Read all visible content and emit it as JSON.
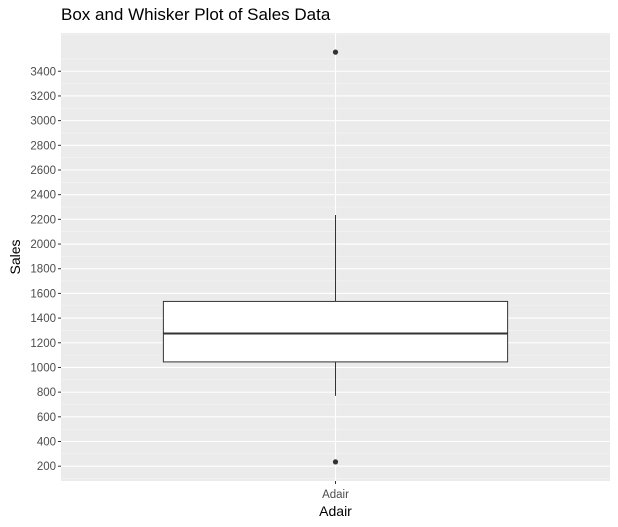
{
  "chart_data": {
    "type": "boxplot",
    "title": "Box and Whisker Plot of Sales Data",
    "xlabel": "Adair",
    "ylabel": "Sales",
    "categories": [
      "Adair"
    ],
    "boxes": [
      {
        "category": "Adair",
        "whisker_low": 770,
        "q1": 1045,
        "median": 1275,
        "q3": 1535,
        "whisker_high": 2235,
        "outliers": [
          235,
          3555
        ]
      }
    ],
    "y_ticks": [
      200,
      400,
      600,
      800,
      1000,
      1200,
      1400,
      1600,
      1800,
      2000,
      2200,
      2400,
      2600,
      2800,
      3000,
      3200,
      3400
    ],
    "ylim": [
      80,
      3710
    ],
    "grid": true,
    "colors": {
      "panel_background": "#EBEBEB",
      "grid_major": "#FFFFFF",
      "grid_minor": "#F5F5F5",
      "box_fill": "#FFFFFF",
      "box_line": "#333333",
      "outlier": "#333333"
    }
  }
}
